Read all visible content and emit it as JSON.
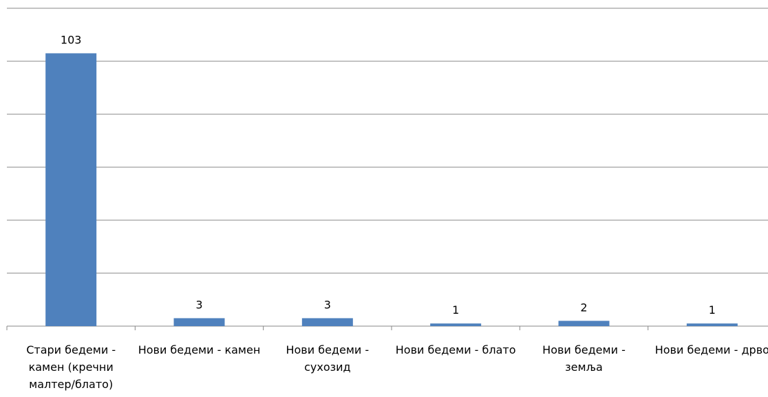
{
  "chart_data": {
    "type": "bar",
    "categories": [
      "Стари бедеми - камен (кречни малтер/блато)",
      "Нови бедеми - камен",
      "Нови бедеми - сухозид",
      "Нови бедеми - блато",
      "Нови бедеми - земља",
      "Нови бедеми - дрво"
    ],
    "values": [
      103,
      3,
      3,
      1,
      2,
      1
    ],
    "color": "#4f81bd",
    "ylim": [
      0,
      120
    ],
    "yticks": [
      0,
      20,
      40,
      60,
      80,
      100,
      120
    ],
    "grid": true
  }
}
